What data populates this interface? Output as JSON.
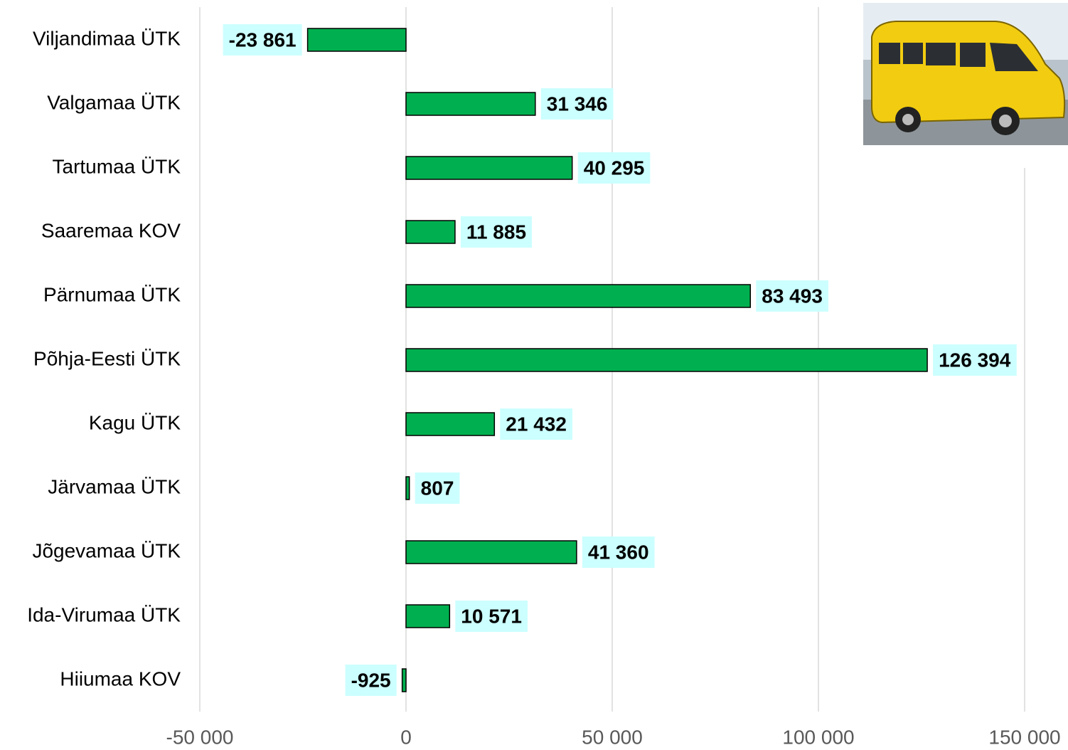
{
  "chart_data": {
    "type": "bar",
    "orientation": "horizontal",
    "categories": [
      "Viljandimaa ÜTK",
      "Valgamaa ÜTK",
      "Tartumaa ÜTK",
      "Saaremaa KOV",
      "Pärnumaa ÜTK",
      "Põhja-Eesti ÜTK",
      "Kagu ÜTK",
      "Järvamaa ÜTK",
      "Jõgevamaa ÜTK",
      "Ida-Virumaa ÜTK",
      "Hiiumaa KOV"
    ],
    "values": [
      -23861,
      31346,
      40295,
      11885,
      83493,
      126394,
      21432,
      807,
      41360,
      10571,
      -925
    ],
    "value_labels": [
      "-23 861",
      "31 346",
      "40 295",
      "11 885",
      "83 493",
      "126 394",
      "21 432",
      "807",
      "41 360",
      "10 571",
      "-925"
    ],
    "color": "#00b050",
    "xlim": [
      -50000,
      150000
    ],
    "xticks": [
      {
        "value": -50000,
        "label": "-50 000"
      },
      0,
      {
        "value": 50000,
        "label": "50 000"
      },
      {
        "value": 100000,
        "label": "100 000"
      },
      {
        "value": 150000,
        "label": "150 000"
      }
    ],
    "grid": true
  }
}
